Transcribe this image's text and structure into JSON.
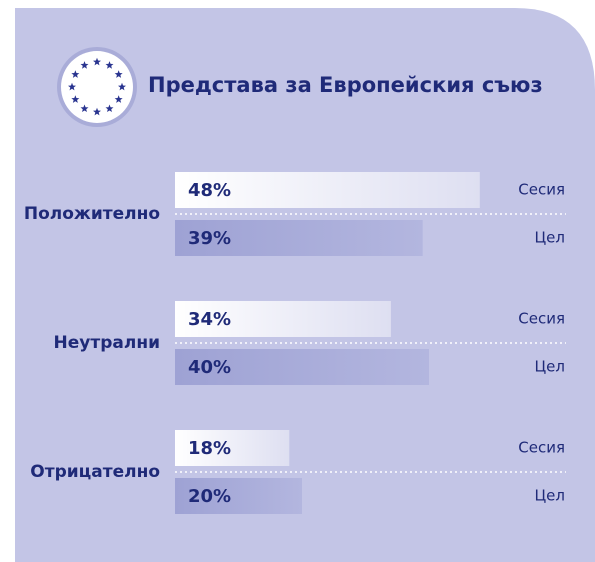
{
  "chart_data": {
    "type": "bar",
    "orientation": "horizontal",
    "title": "Представа за Европейския съюз",
    "categories": [
      "Положително",
      "Неутрални",
      "Отрицателно"
    ],
    "series": [
      {
        "name": "Сесия",
        "color": "#ffffff",
        "values": [
          48,
          34,
          18
        ],
        "value_labels": [
          "48%",
          "34%",
          "18%"
        ]
      },
      {
        "name": "Цел",
        "color": "#9ea2d4",
        "values": [
          39,
          40,
          20
        ],
        "value_labels": [
          "39%",
          "40%",
          "20%"
        ]
      }
    ]
  }
}
